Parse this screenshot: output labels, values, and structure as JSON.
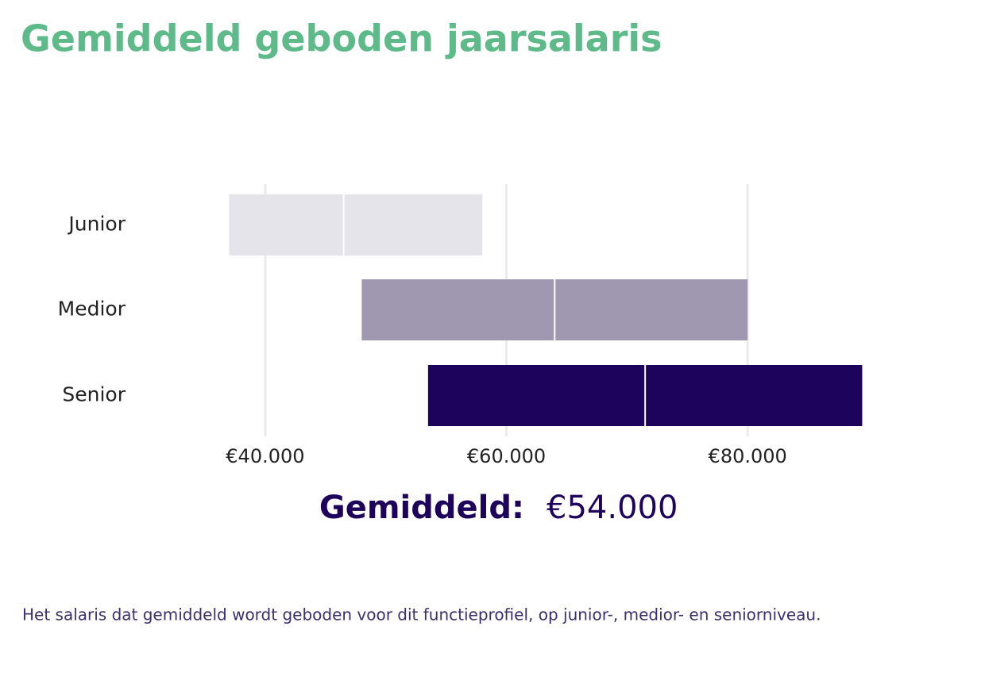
{
  "chart_data": {
    "type": "range-bar",
    "title": "Gemiddeld geboden jaarsalaris",
    "categories": [
      "Junior",
      "Medior",
      "Senior"
    ],
    "low": [
      37000,
      48000,
      53500
    ],
    "median": [
      46500,
      64000,
      71500
    ],
    "high": [
      58000,
      80000,
      89500
    ],
    "colors": [
      "#e4e4ea",
      "#9f98b0",
      "#1e035c"
    ],
    "xlim": [
      35000,
      90000
    ],
    "xticks": [
      {
        "value": 40000,
        "label": "€40.000"
      },
      {
        "value": 60000,
        "label": "€60.000"
      },
      {
        "value": 80000,
        "label": "€80.000"
      }
    ],
    "grid": true,
    "summary_label": "Gemiddeld:",
    "summary_value": "€54.000",
    "caption": "Het salaris dat gemiddeld wordt geboden voor dit functieprofiel, op junior-, medior- en seniorniveau."
  }
}
